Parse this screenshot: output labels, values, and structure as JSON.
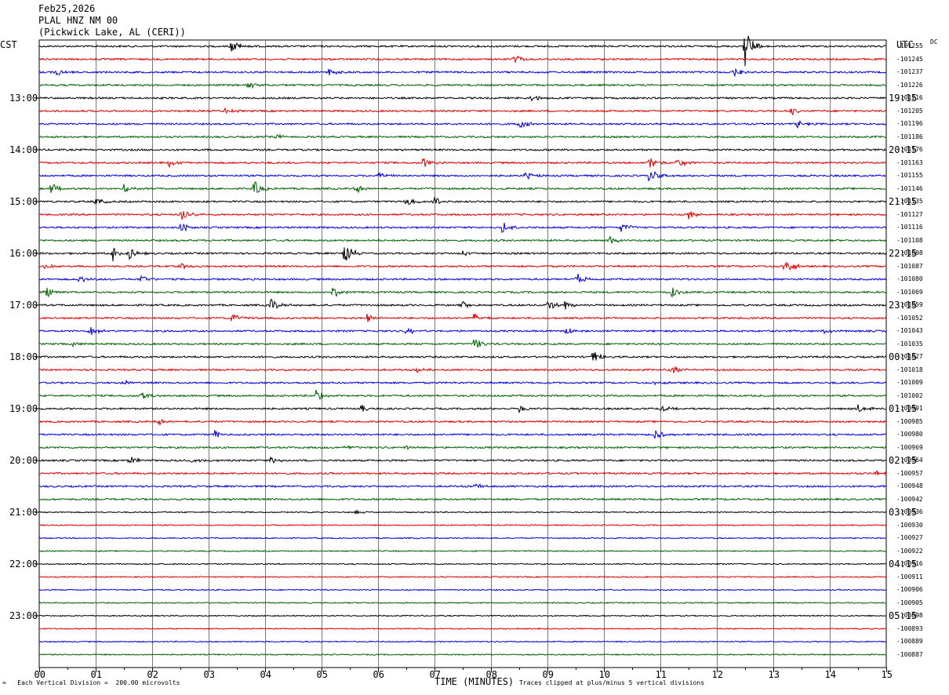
{
  "header": {
    "date": "Feb25,2026",
    "station": "PLAL HNZ NM 00",
    "location": "(Pickwick Lake, AL (CERI))"
  },
  "axis": {
    "left_zone": "CST",
    "right_zone": "UTC",
    "dc_label": "DC",
    "xlabel": "TIME (MINUTES)"
  },
  "footer": {
    "scale_note": "Each Vertical Division =  200.00 microvolts",
    "clip_note": "Traces clipped at plus/minus 5 vertical divisions",
    "mark": "≈"
  },
  "chart_data": {
    "type": "line",
    "xlim": [
      0,
      15
    ],
    "x_ticks": [
      "00",
      "01",
      "02",
      "03",
      "04",
      "05",
      "06",
      "07",
      "08",
      "09",
      "10",
      "11",
      "12",
      "13",
      "14",
      "15"
    ],
    "trace_colors": [
      "#000000",
      "#e00000",
      "#0000e0",
      "#006000"
    ],
    "left_hour_labels": [
      {
        "trace": 4,
        "label": "13:00"
      },
      {
        "trace": 8,
        "label": "14:00"
      },
      {
        "trace": 12,
        "label": "15:00"
      },
      {
        "trace": 16,
        "label": "16:00"
      },
      {
        "trace": 20,
        "label": "17:00"
      },
      {
        "trace": 24,
        "label": "18:00"
      },
      {
        "trace": 28,
        "label": "19:00"
      },
      {
        "trace": 32,
        "label": "20:00"
      },
      {
        "trace": 36,
        "label": "21:00"
      },
      {
        "trace": 40,
        "label": "22:00"
      },
      {
        "trace": 44,
        "label": "23:00"
      }
    ],
    "right_hour_labels": [
      {
        "trace": 4,
        "label": "19:15"
      },
      {
        "trace": 8,
        "label": "20:15"
      },
      {
        "trace": 12,
        "label": "21:15"
      },
      {
        "trace": 16,
        "label": "22:15"
      },
      {
        "trace": 20,
        "label": "23:15"
      },
      {
        "trace": 24,
        "label": "00:15"
      },
      {
        "trace": 28,
        "label": "01:15"
      },
      {
        "trace": 32,
        "label": "02:15"
      },
      {
        "trace": 36,
        "label": "03:15"
      },
      {
        "trace": 40,
        "label": "04:15"
      },
      {
        "trace": 44,
        "label": "05:15"
      }
    ],
    "dc_offsets": [
      "-101255",
      "-101245",
      "-101237",
      "-101226",
      "-101216",
      "-101205",
      "-101196",
      "-101186",
      "-101176",
      "-101163",
      "-101155",
      "-101146",
      "-101135",
      "-101127",
      "-101116",
      "-101108",
      "-101098",
      "-101087",
      "-101080",
      "-101069",
      "-101059",
      "-101052",
      "-101043",
      "-101035",
      "-101027",
      "-101018",
      "-101009",
      "-101002",
      "-100991",
      "-100985",
      "-100980",
      "-100969",
      "-100964",
      "-100957",
      "-100948",
      "-100942",
      "-100936",
      "-100930",
      "-100927",
      "-100922",
      "-100916",
      "-100911",
      "-100906",
      "-100905",
      "-100898",
      "-100893",
      "-100889",
      "-100887"
    ],
    "events": [
      {
        "trace": 0,
        "t": 3.4,
        "amp": 9
      },
      {
        "trace": 0,
        "t": 12.5,
        "amp": 28
      },
      {
        "trace": 1,
        "t": 8.4,
        "amp": 7
      },
      {
        "trace": 2,
        "t": 0.3,
        "amp": 6
      },
      {
        "trace": 2,
        "t": 5.1,
        "amp": 8
      },
      {
        "trace": 2,
        "t": 12.3,
        "amp": 6
      },
      {
        "trace": 3,
        "t": 3.7,
        "amp": 5
      },
      {
        "trace": 4,
        "t": 8.7,
        "amp": 6
      },
      {
        "trace": 5,
        "t": 3.3,
        "amp": 5
      },
      {
        "trace": 5,
        "t": 13.3,
        "amp": 6
      },
      {
        "trace": 6,
        "t": 8.5,
        "amp": 6
      },
      {
        "trace": 6,
        "t": 13.4,
        "amp": 6
      },
      {
        "trace": 7,
        "t": 4.2,
        "amp": 4
      },
      {
        "trace": 9,
        "t": 2.3,
        "amp": 6
      },
      {
        "trace": 9,
        "t": 6.8,
        "amp": 7
      },
      {
        "trace": 9,
        "t": 10.8,
        "amp": 10
      },
      {
        "trace": 9,
        "t": 11.3,
        "amp": 9
      },
      {
        "trace": 10,
        "t": 6.0,
        "amp": 6
      },
      {
        "trace": 10,
        "t": 8.6,
        "amp": 6
      },
      {
        "trace": 10,
        "t": 10.8,
        "amp": 10
      },
      {
        "trace": 11,
        "t": 0.2,
        "amp": 8
      },
      {
        "trace": 11,
        "t": 1.5,
        "amp": 6
      },
      {
        "trace": 11,
        "t": 3.8,
        "amp": 10
      },
      {
        "trace": 11,
        "t": 5.6,
        "amp": 7
      },
      {
        "trace": 12,
        "t": 1.0,
        "amp": 5
      },
      {
        "trace": 12,
        "t": 6.5,
        "amp": 7
      },
      {
        "trace": 12,
        "t": 7.0,
        "amp": 7
      },
      {
        "trace": 13,
        "t": 2.5,
        "amp": 12
      },
      {
        "trace": 13,
        "t": 11.5,
        "amp": 6
      },
      {
        "trace": 14,
        "t": 2.5,
        "amp": 7
      },
      {
        "trace": 14,
        "t": 8.2,
        "amp": 8
      },
      {
        "trace": 14,
        "t": 10.3,
        "amp": 8
      },
      {
        "trace": 15,
        "t": 10.1,
        "amp": 6
      },
      {
        "trace": 16,
        "t": 1.3,
        "amp": 12
      },
      {
        "trace": 16,
        "t": 1.6,
        "amp": 10
      },
      {
        "trace": 16,
        "t": 5.4,
        "amp": 20
      },
      {
        "trace": 16,
        "t": 7.5,
        "amp": 5
      },
      {
        "trace": 17,
        "t": 0.1,
        "amp": 6
      },
      {
        "trace": 17,
        "t": 2.5,
        "amp": 5
      },
      {
        "trace": 17,
        "t": 13.2,
        "amp": 14
      },
      {
        "trace": 18,
        "t": 0.7,
        "amp": 6
      },
      {
        "trace": 18,
        "t": 1.8,
        "amp": 7
      },
      {
        "trace": 18,
        "t": 9.5,
        "amp": 9
      },
      {
        "trace": 19,
        "t": 0.1,
        "amp": 10
      },
      {
        "trace": 19,
        "t": 5.2,
        "amp": 9
      },
      {
        "trace": 19,
        "t": 11.2,
        "amp": 7
      },
      {
        "trace": 20,
        "t": 4.1,
        "amp": 9
      },
      {
        "trace": 20,
        "t": 7.5,
        "amp": 5
      },
      {
        "trace": 20,
        "t": 9.0,
        "amp": 7
      },
      {
        "trace": 20,
        "t": 9.3,
        "amp": 8
      },
      {
        "trace": 21,
        "t": 3.4,
        "amp": 8
      },
      {
        "trace": 21,
        "t": 5.8,
        "amp": 6
      },
      {
        "trace": 21,
        "t": 7.7,
        "amp": 7
      },
      {
        "trace": 22,
        "t": 0.9,
        "amp": 7
      },
      {
        "trace": 22,
        "t": 6.5,
        "amp": 7
      },
      {
        "trace": 22,
        "t": 9.3,
        "amp": 6
      },
      {
        "trace": 22,
        "t": 13.9,
        "amp": 4
      },
      {
        "trace": 23,
        "t": 0.6,
        "amp": 4
      },
      {
        "trace": 23,
        "t": 7.7,
        "amp": 9
      },
      {
        "trace": 24,
        "t": 9.8,
        "amp": 11
      },
      {
        "trace": 24,
        "t": 13.2,
        "amp": 4
      },
      {
        "trace": 25,
        "t": 6.7,
        "amp": 4
      },
      {
        "trace": 25,
        "t": 11.2,
        "amp": 7
      },
      {
        "trace": 26,
        "t": 1.5,
        "amp": 4
      },
      {
        "trace": 26,
        "t": 10.9,
        "amp": 3
      },
      {
        "trace": 27,
        "t": 1.8,
        "amp": 7
      },
      {
        "trace": 27,
        "t": 4.9,
        "amp": 9
      },
      {
        "trace": 28,
        "t": 5.7,
        "amp": 5
      },
      {
        "trace": 28,
        "t": 8.5,
        "amp": 6
      },
      {
        "trace": 28,
        "t": 11.0,
        "amp": 5
      },
      {
        "trace": 28,
        "t": 14.5,
        "amp": 6
      },
      {
        "trace": 29,
        "t": 2.1,
        "amp": 5
      },
      {
        "trace": 30,
        "t": 3.1,
        "amp": 6
      },
      {
        "trace": 30,
        "t": 10.9,
        "amp": 8
      },
      {
        "trace": 31,
        "t": 5.4,
        "amp": 3
      },
      {
        "trace": 31,
        "t": 6.5,
        "amp": 3
      },
      {
        "trace": 32,
        "t": 1.6,
        "amp": 6
      },
      {
        "trace": 32,
        "t": 2.7,
        "amp": 4
      },
      {
        "trace": 32,
        "t": 4.1,
        "amp": 6
      },
      {
        "trace": 33,
        "t": 14.8,
        "amp": 4
      },
      {
        "trace": 34,
        "t": 7.7,
        "amp": 5
      },
      {
        "trace": 36,
        "t": 5.6,
        "amp": 3
      }
    ]
  }
}
